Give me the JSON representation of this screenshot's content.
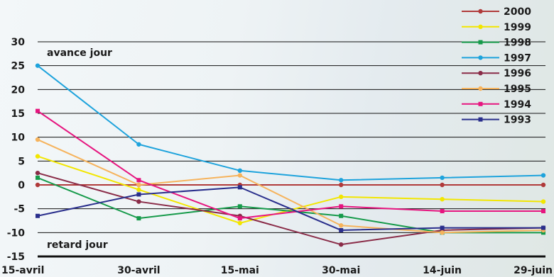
{
  "chart_data": {
    "type": "line",
    "x": [
      "15-avril",
      "30-avril",
      "15-mai",
      "30-mai",
      "14-juin",
      "29-juin"
    ],
    "ylim": [
      -15,
      30
    ],
    "yticks": [
      30,
      25,
      20,
      15,
      10,
      5,
      0,
      -5,
      -10,
      -15
    ],
    "grid": true,
    "legend_position": "top-right",
    "annotations": {
      "top": "avance jour",
      "bottom": "retard jour"
    },
    "series": [
      {
        "name": "2000",
        "color": "#b03a3a",
        "values": [
          0,
          0,
          0,
          0,
          0,
          0
        ]
      },
      {
        "name": "1999",
        "color": "#f2e600",
        "values": [
          6,
          -1,
          -8,
          -2.5,
          -3,
          -3.5
        ]
      },
      {
        "name": "1998",
        "color": "#169a4a",
        "values": [
          1.5,
          -7,
          -4.5,
          -6.5,
          -10,
          -10
        ]
      },
      {
        "name": "1997",
        "color": "#1ea3dc",
        "values": [
          25,
          8.5,
          3,
          1,
          1.5,
          2
        ]
      },
      {
        "name": "1996",
        "color": "#8a2c48",
        "values": [
          2.5,
          -3.5,
          -6.5,
          -12.5,
          -9.5,
          -9
        ]
      },
      {
        "name": "1995",
        "color": "#f6b35c",
        "values": [
          9.5,
          0,
          2,
          -8.5,
          -10,
          -9.5
        ]
      },
      {
        "name": "1994",
        "color": "#e6157f",
        "values": [
          15.5,
          1,
          -7,
          -4.5,
          -5.5,
          -5.5
        ]
      },
      {
        "name": "1993",
        "color": "#2a2f8c",
        "values": [
          -6.5,
          -2,
          -0.5,
          -9.5,
          -9,
          -9
        ]
      }
    ]
  }
}
